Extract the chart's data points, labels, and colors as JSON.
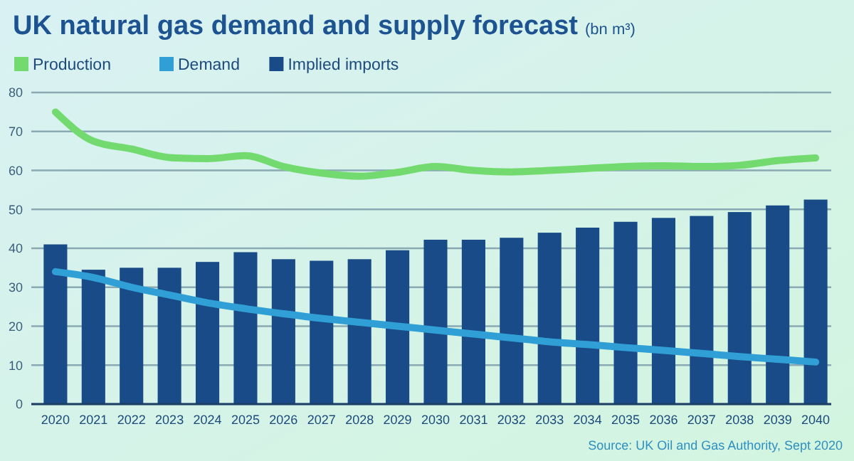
{
  "chart_data": {
    "type": "bar",
    "title": "UK natural gas demand and supply forecast",
    "subtitle": "(bn m³)",
    "categories": [
      "2020",
      "2021",
      "2022",
      "2023",
      "2024",
      "2025",
      "2026",
      "2027",
      "2028",
      "2029",
      "2030",
      "2031",
      "2032",
      "2033",
      "2034",
      "2035",
      "2036",
      "2037",
      "2038",
      "2039",
      "2040"
    ],
    "series": [
      {
        "name": "Production",
        "type": "line",
        "color": "#72da6e",
        "values": [
          75,
          67.5,
          65.5,
          63.3,
          63,
          63.8,
          61,
          59.3,
          58.5,
          59.5,
          61,
          60,
          59.6,
          60,
          60.5,
          61,
          61.2,
          61,
          61.3,
          62.5,
          63.2
        ]
      },
      {
        "name": "Demand",
        "type": "line",
        "color": "#2f9fd5",
        "values": [
          34,
          32.5,
          30,
          28,
          26,
          24.5,
          23.2,
          22,
          21,
          20,
          19,
          18,
          17,
          16,
          15.3,
          14.5,
          13.8,
          13,
          12.2,
          11.5,
          10.8
        ]
      },
      {
        "name": "Implied imports",
        "color": "#184b87",
        "values": [
          41,
          34.5,
          35,
          35,
          36.5,
          39,
          37.2,
          36.8,
          37.2,
          39.5,
          42.2,
          42.2,
          42.7,
          44,
          45.3,
          46.8,
          47.8,
          48.3,
          49.3,
          51,
          52.5
        ]
      }
    ],
    "ylim": [
      0,
      80
    ],
    "yticks": [
      0,
      10,
      20,
      30,
      40,
      50,
      60,
      70,
      80
    ],
    "grid": "y",
    "legend": "top left",
    "annotations": [
      "Source: UK Oil and Gas Authority, Sept 2020"
    ]
  }
}
